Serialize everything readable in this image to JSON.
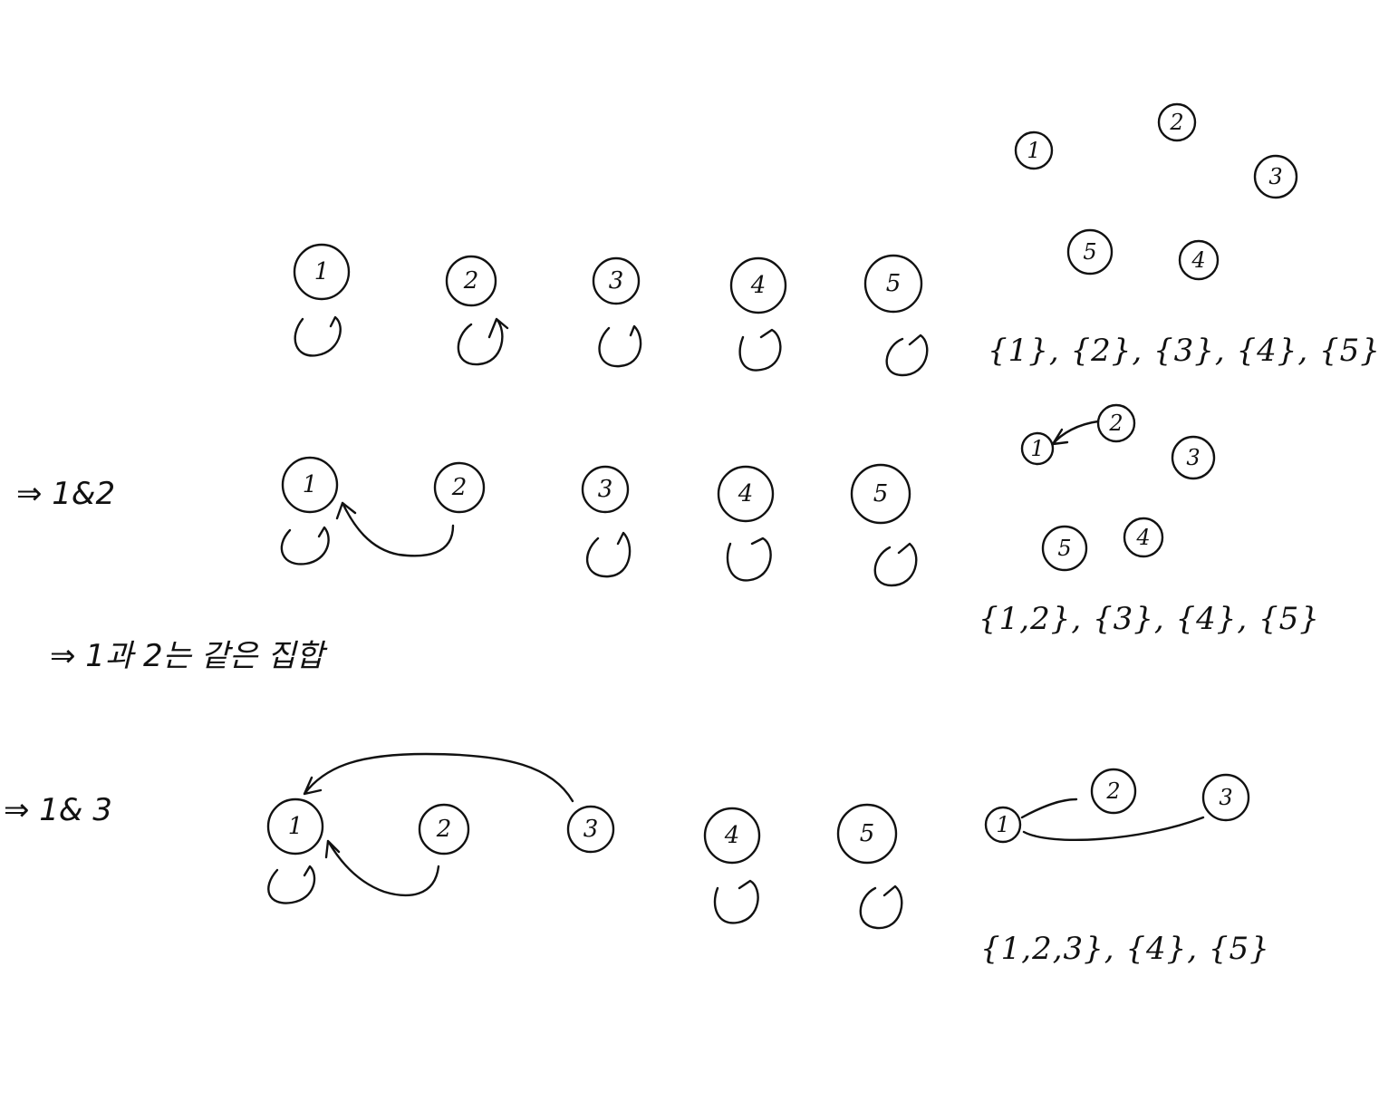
{
  "rows": [
    {
      "step_label": "",
      "nodes": [
        "1",
        "2",
        "3",
        "4",
        "5"
      ],
      "graph_nodes": [
        "1",
        "2",
        "3",
        "4",
        "5"
      ],
      "set_text": "{1}, {2}, {3}, {4}, {5}"
    },
    {
      "step_label": "⇒ 1&2",
      "nodes": [
        "1",
        "2",
        "3",
        "4",
        "5"
      ],
      "graph_nodes": [
        "1",
        "2",
        "3",
        "4",
        "5"
      ],
      "set_text": "{1,2}, {3}, {4}, {5}",
      "note": "⇒ 1과 2는 같은 집합"
    },
    {
      "step_label": "⇒ 1& 3",
      "nodes": [
        "1",
        "2",
        "3",
        "4",
        "5"
      ],
      "graph_nodes": [
        "1",
        "2",
        "3"
      ],
      "set_text": "{1,2,3}, {4}, {5}"
    }
  ]
}
